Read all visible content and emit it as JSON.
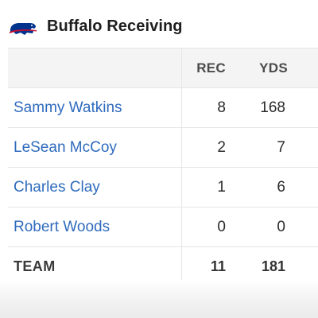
{
  "header": {
    "title": "Buffalo Receiving",
    "logo_icon": "buffalo-logo-icon",
    "logo_colors": {
      "blue": "#00338d",
      "red": "#c60c30"
    }
  },
  "table": {
    "columns": [
      "",
      "REC",
      "YDS"
    ],
    "rows": [
      {
        "player": "Sammy Watkins",
        "rec": "8",
        "yds": "168"
      },
      {
        "player": "LeSean McCoy",
        "rec": "2",
        "yds": "7"
      },
      {
        "player": "Charles Clay",
        "rec": "1",
        "yds": "6"
      },
      {
        "player": "Robert Woods",
        "rec": "0",
        "yds": "0"
      }
    ],
    "total": {
      "label": "TEAM",
      "rec": "11",
      "yds": "181"
    }
  },
  "colors": {
    "link": "#2f6bbd",
    "header_bg": "#f4f4f5",
    "border": "#e6e6e6"
  }
}
